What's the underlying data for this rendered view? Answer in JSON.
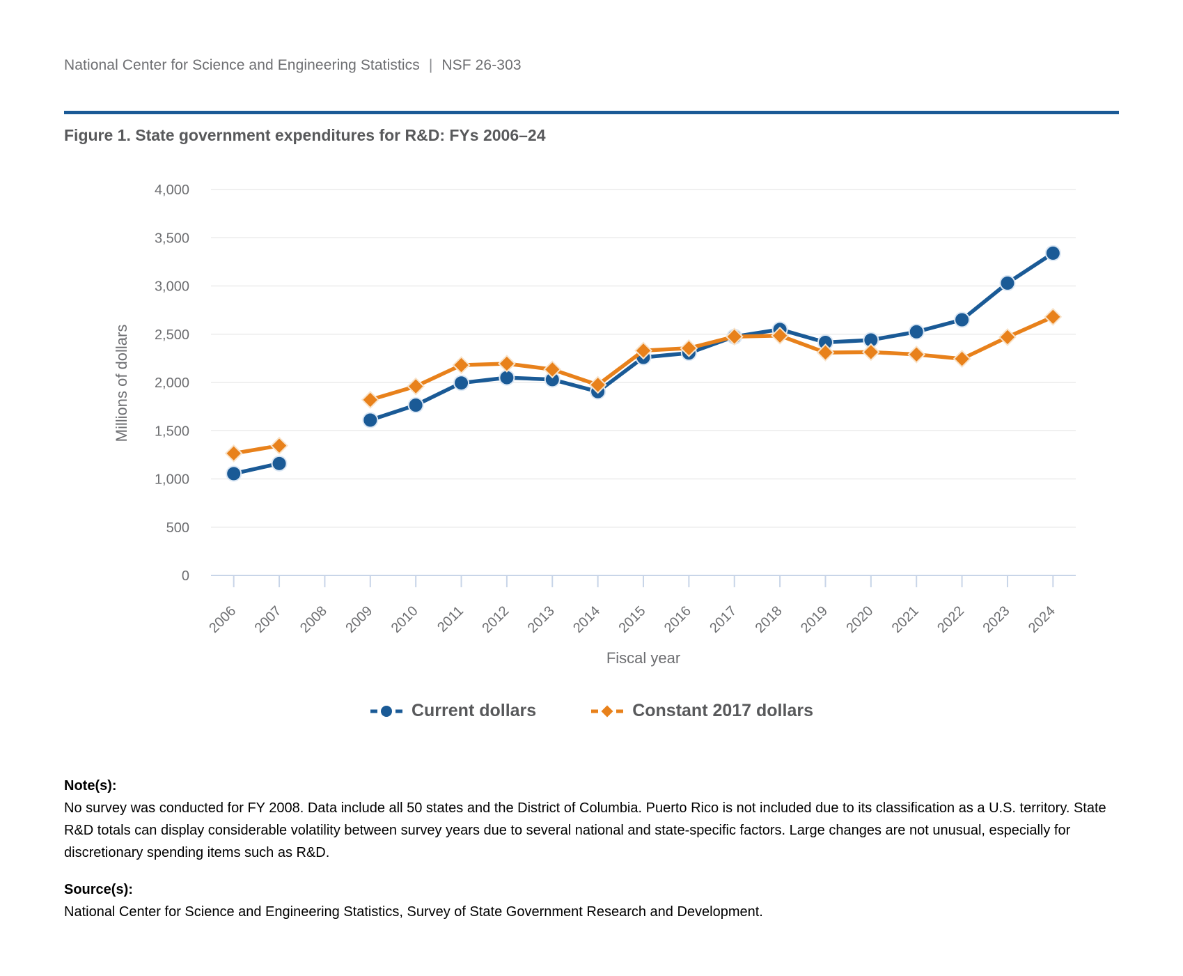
{
  "page": {
    "header": {
      "title": "National Center for Science and Engineering Statistics",
      "pipe": "|",
      "doc_number": "NSF 26-303"
    },
    "accent_color": "#1a5a96"
  },
  "figure": {
    "title": "Figure 1. State government expenditures for R&D: FYs 2006–24"
  },
  "chart_data": {
    "type": "line",
    "title": "State government expenditures for R&D: FYs 2006–24",
    "xlabel": "Fiscal year",
    "ylabel": "Millions of dollars",
    "ylim": [
      0,
      4000
    ],
    "ytick_step": 500,
    "grid": true,
    "legend_position": "bottom",
    "missing_years": [
      2008
    ],
    "categories": [
      2006,
      2007,
      2008,
      2009,
      2010,
      2011,
      2012,
      2013,
      2014,
      2015,
      2016,
      2017,
      2018,
      2019,
      2020,
      2021,
      2022,
      2023,
      2024
    ],
    "series": [
      {
        "name": "Current dollars",
        "marker": "circle",
        "color": "#1a5a96",
        "values": [
          1055,
          1160,
          null,
          1610,
          1765,
          1995,
          2050,
          2030,
          1905,
          2260,
          2305,
          2475,
          2550,
          2415,
          2440,
          2525,
          2650,
          3030,
          3340
        ]
      },
      {
        "name": "Constant 2017 dollars",
        "marker": "diamond",
        "color": "#e8811b",
        "values": [
          1265,
          1345,
          null,
          1820,
          1960,
          2180,
          2195,
          2135,
          1975,
          2330,
          2355,
          2475,
          2485,
          2310,
          2315,
          2290,
          2245,
          2470,
          2680
        ]
      }
    ]
  },
  "notes": {
    "heading": "Note(s):",
    "body": "No survey was conducted for FY 2008. Data include all 50 states and the District of Columbia. Puerto Rico is not included due to its classification as a U.S. territory. State R&D totals can display considerable volatility between survey years due to several national and state-specific factors. Large changes are not unusual, especially for discretionary spending items such as R&D."
  },
  "source": {
    "heading": "Source(s):",
    "body": "National Center for Science and Engineering Statistics, Survey of State Government Research and Development."
  }
}
